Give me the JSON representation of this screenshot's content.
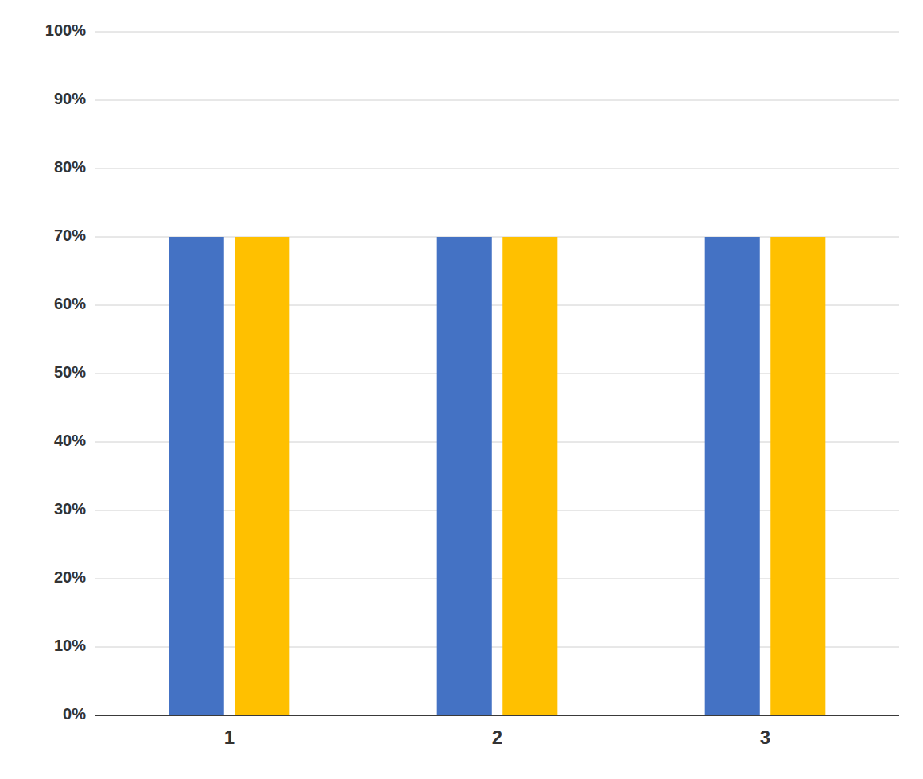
{
  "chart_data": {
    "type": "bar",
    "categories": [
      "1",
      "2",
      "3"
    ],
    "series": [
      {
        "color": "#4472C4",
        "values": [
          70,
          70,
          70
        ]
      },
      {
        "color": "#FFC000",
        "values": [
          70,
          70,
          70
        ]
      }
    ],
    "ylim": [
      0,
      100
    ],
    "yticks": [
      {
        "value": 0,
        "label": "0%"
      },
      {
        "value": 10,
        "label": "10%"
      },
      {
        "value": 20,
        "label": "20%"
      },
      {
        "value": 30,
        "label": "30%"
      },
      {
        "value": 40,
        "label": "40%"
      },
      {
        "value": 50,
        "label": "50%"
      },
      {
        "value": 60,
        "label": "60%"
      },
      {
        "value": 70,
        "label": "70%"
      },
      {
        "value": 80,
        "label": "80%"
      },
      {
        "value": 90,
        "label": "90%"
      },
      {
        "value": 100,
        "label": "100%"
      }
    ],
    "grid": true
  }
}
